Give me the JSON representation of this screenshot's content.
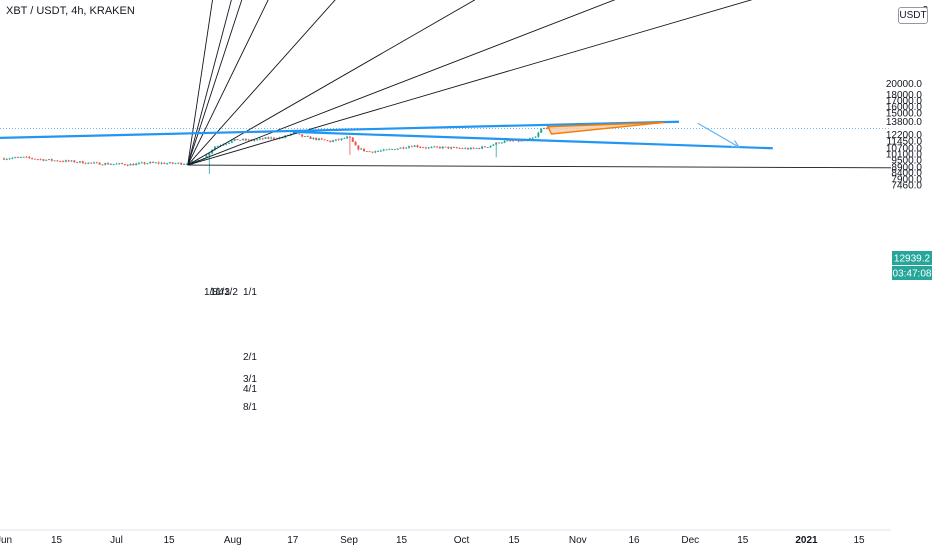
{
  "header": {
    "symbol": "XBT / USDT, 4h, KRAKEN",
    "currency": "USDT"
  },
  "price_badges": {
    "last_price": "12939.2",
    "countdown": "03:47:08"
  },
  "colors": {
    "up": "#26a69a",
    "down": "#ef5350",
    "trendline": "#2196f3",
    "fan": "#131722",
    "triangle_fill": "#f6c6a0",
    "triangle_stroke": "#f57c00",
    "arrow": "#64b5f6",
    "price_line": "#42a5f5"
  },
  "chart_data": {
    "type": "candlestick",
    "interval": "4h",
    "y_scale": "log",
    "ylim": [
      7000,
      22000
    ],
    "y_ticks": [
      "20000.0",
      "18000.0",
      "17000.0",
      "16000.0",
      "15000.0",
      "13800.0",
      "12200.0",
      "11450.0",
      "10700.0",
      "10100.0",
      "9500.0",
      "8900.0",
      "8400.0",
      "7900.0",
      "7460.0"
    ],
    "x_ticks": [
      "Jun",
      "15",
      "Jul",
      "15",
      "Aug",
      "17",
      "Sep",
      "15",
      "Oct",
      "15",
      "Nov",
      "16",
      "Dec",
      "15",
      "2021",
      "15"
    ],
    "x_ticks_bold": [
      "2021"
    ],
    "gann_fan_labels": [
      "1/8",
      "1/4",
      "1/3",
      "1/2",
      "1/1",
      "2/1",
      "3/1",
      "4/1",
      "8/1"
    ],
    "price_path": [
      [
        "Jun 1",
        9650
      ],
      [
        "Jun 6",
        9750
      ],
      [
        "Jun 11",
        9550
      ],
      [
        "Jun 15",
        9450
      ],
      [
        "Jun 20",
        9350
      ],
      [
        "Jun 25",
        9200
      ],
      [
        "Jun 30",
        9150
      ],
      [
        "Jul 5",
        9100
      ],
      [
        "Jul 10",
        9250
      ],
      [
        "Jul 15",
        9200
      ],
      [
        "Jul 20",
        9200
      ],
      [
        "Jul 22",
        9350
      ],
      [
        "Jul 25",
        9900
      ],
      [
        "Jul 27",
        10800
      ],
      [
        "Jul 30",
        11200
      ],
      [
        "Aug 2",
        11600
      ],
      [
        "Aug 6",
        11500
      ],
      [
        "Aug 10",
        11750
      ],
      [
        "Aug 14",
        11800
      ],
      [
        "Aug 17",
        12350
      ],
      [
        "Aug 20",
        11900
      ],
      [
        "Aug 24",
        11600
      ],
      [
        "Aug 27",
        11400
      ],
      [
        "Aug 30",
        11650
      ],
      [
        "Sep 1",
        11900
      ],
      [
        "Sep 3",
        10700
      ],
      [
        "Sep 6",
        10300
      ],
      [
        "Sep 10",
        10400
      ],
      [
        "Sep 14",
        10650
      ],
      [
        "Sep 18",
        10950
      ],
      [
        "Sep 22",
        10700
      ],
      [
        "Sep 26",
        10750
      ],
      [
        "Sep 30",
        10650
      ],
      [
        "Oct 4",
        10600
      ],
      [
        "Oct 8",
        10850
      ],
      [
        "Oct 11",
        11300
      ],
      [
        "Oct 14",
        11450
      ],
      [
        "Oct 18",
        11450
      ],
      [
        "Oct 21",
        11900
      ],
      [
        "Oct 22",
        12800
      ],
      [
        "Oct 24",
        13050
      ],
      [
        "Oct 25",
        12939.2
      ]
    ],
    "drawings": {
      "rising_trendline": [
        [
          "May 27",
          11750
        ],
        [
          "Nov 28",
          13800
        ]
      ],
      "falling_trendline": [
        [
          "Aug 17",
          12500
        ],
        [
          "Dec 23",
          10660
        ]
      ],
      "triangle": [
        [
          "Oct 24",
          13150
        ],
        [
          "Nov 24",
          13700
        ],
        [
          "Oct 25",
          12250
        ]
      ],
      "projection_arrow": [
        [
          "Dec 3",
          13600
        ],
        [
          "Dec 14",
          10780
        ]
      ],
      "current_price": 12939.2
    }
  }
}
